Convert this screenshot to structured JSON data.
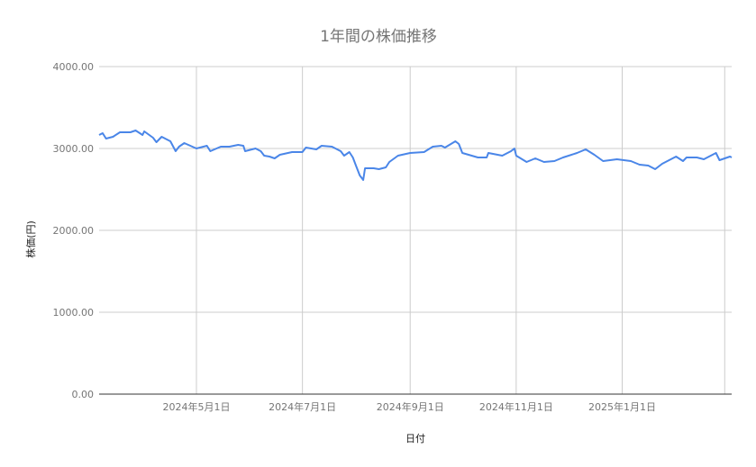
{
  "chart_data": {
    "type": "line",
    "title": "1年間の株価推移",
    "xlabel": "日付",
    "ylabel": "株価(円)",
    "ylim": [
      0,
      4000
    ],
    "xlim": [
      "2024-03-06",
      "2025-03-05"
    ],
    "yticks": [
      "0.00",
      "1000.00",
      "2000.00",
      "3000.00",
      "4000.00"
    ],
    "xticks": [
      {
        "date": "2024-05-01",
        "label": "2024年5月1日"
      },
      {
        "date": "2024-07-01",
        "label": "2024年7月1日"
      },
      {
        "date": "2024-09-01",
        "label": "2024年9月1日"
      },
      {
        "date": "2024-11-01",
        "label": "2024年11月1日"
      },
      {
        "date": "2025-01-01",
        "label": "2025年1月1日"
      },
      {
        "date": "2025-03-01",
        "label": ""
      }
    ],
    "grid": true,
    "line_color": "#4a86e8",
    "series": [
      {
        "points": [
          [
            "2024-03-06",
            3165
          ],
          [
            "2024-03-08",
            3187
          ],
          [
            "2024-03-10",
            3121
          ],
          [
            "2024-03-14",
            3143
          ],
          [
            "2024-03-18",
            3198
          ],
          [
            "2024-03-24",
            3198
          ],
          [
            "2024-03-27",
            3220
          ],
          [
            "2024-03-31",
            3165
          ],
          [
            "2024-04-01",
            3209
          ],
          [
            "2024-04-06",
            3132
          ],
          [
            "2024-04-08",
            3077
          ],
          [
            "2024-04-11",
            3143
          ],
          [
            "2024-04-16",
            3088
          ],
          [
            "2024-04-19",
            2967
          ],
          [
            "2024-04-21",
            3022
          ],
          [
            "2024-04-24",
            3066
          ],
          [
            "2024-05-01",
            3000
          ],
          [
            "2024-05-07",
            3033
          ],
          [
            "2024-05-09",
            2967
          ],
          [
            "2024-05-15",
            3022
          ],
          [
            "2024-05-20",
            3022
          ],
          [
            "2024-05-25",
            3044
          ],
          [
            "2024-05-28",
            3033
          ],
          [
            "2024-05-29",
            2967
          ],
          [
            "2024-06-04",
            3000
          ],
          [
            "2024-06-07",
            2967
          ],
          [
            "2024-06-09",
            2912
          ],
          [
            "2024-06-12",
            2901
          ],
          [
            "2024-06-15",
            2879
          ],
          [
            "2024-06-18",
            2923
          ],
          [
            "2024-06-25",
            2956
          ],
          [
            "2024-07-01",
            2956
          ],
          [
            "2024-07-03",
            3011
          ],
          [
            "2024-07-09",
            2989
          ],
          [
            "2024-07-12",
            3033
          ],
          [
            "2024-07-18",
            3022
          ],
          [
            "2024-07-23",
            2967
          ],
          [
            "2024-07-25",
            2912
          ],
          [
            "2024-07-28",
            2956
          ],
          [
            "2024-07-30",
            2890
          ],
          [
            "2024-08-01",
            2780
          ],
          [
            "2024-08-03",
            2670
          ],
          [
            "2024-08-05",
            2615
          ],
          [
            "2024-08-06",
            2758
          ],
          [
            "2024-08-11",
            2758
          ],
          [
            "2024-08-14",
            2747
          ],
          [
            "2024-08-18",
            2769
          ],
          [
            "2024-08-20",
            2835
          ],
          [
            "2024-08-25",
            2912
          ],
          [
            "2024-09-01",
            2945
          ],
          [
            "2024-09-09",
            2956
          ],
          [
            "2024-09-14",
            3022
          ],
          [
            "2024-09-19",
            3033
          ],
          [
            "2024-09-21",
            3011
          ],
          [
            "2024-09-27",
            3088
          ],
          [
            "2024-09-29",
            3055
          ],
          [
            "2024-10-01",
            2945
          ],
          [
            "2024-10-10",
            2890
          ],
          [
            "2024-10-15",
            2890
          ],
          [
            "2024-10-16",
            2945
          ],
          [
            "2024-10-24",
            2912
          ],
          [
            "2024-10-29",
            2967
          ],
          [
            "2024-10-31",
            3000
          ],
          [
            "2024-11-01",
            2912
          ],
          [
            "2024-11-07",
            2835
          ],
          [
            "2024-11-12",
            2879
          ],
          [
            "2024-11-17",
            2835
          ],
          [
            "2024-11-23",
            2846
          ],
          [
            "2024-11-28",
            2890
          ],
          [
            "2024-12-06",
            2945
          ],
          [
            "2024-12-11",
            2989
          ],
          [
            "2024-12-16",
            2923
          ],
          [
            "2024-12-21",
            2846
          ],
          [
            "2024-12-29",
            2868
          ],
          [
            "2025-01-06",
            2846
          ],
          [
            "2025-01-11",
            2802
          ],
          [
            "2025-01-16",
            2791
          ],
          [
            "2025-01-20",
            2747
          ],
          [
            "2025-01-24",
            2813
          ],
          [
            "2025-02-01",
            2901
          ],
          [
            "2025-02-05",
            2846
          ],
          [
            "2025-02-07",
            2890
          ],
          [
            "2025-02-13",
            2890
          ],
          [
            "2025-02-17",
            2868
          ],
          [
            "2025-02-24",
            2945
          ],
          [
            "2025-02-26",
            2857
          ],
          [
            "2025-03-04",
            2901
          ],
          [
            "2025-03-05",
            2890
          ]
        ]
      }
    ]
  }
}
